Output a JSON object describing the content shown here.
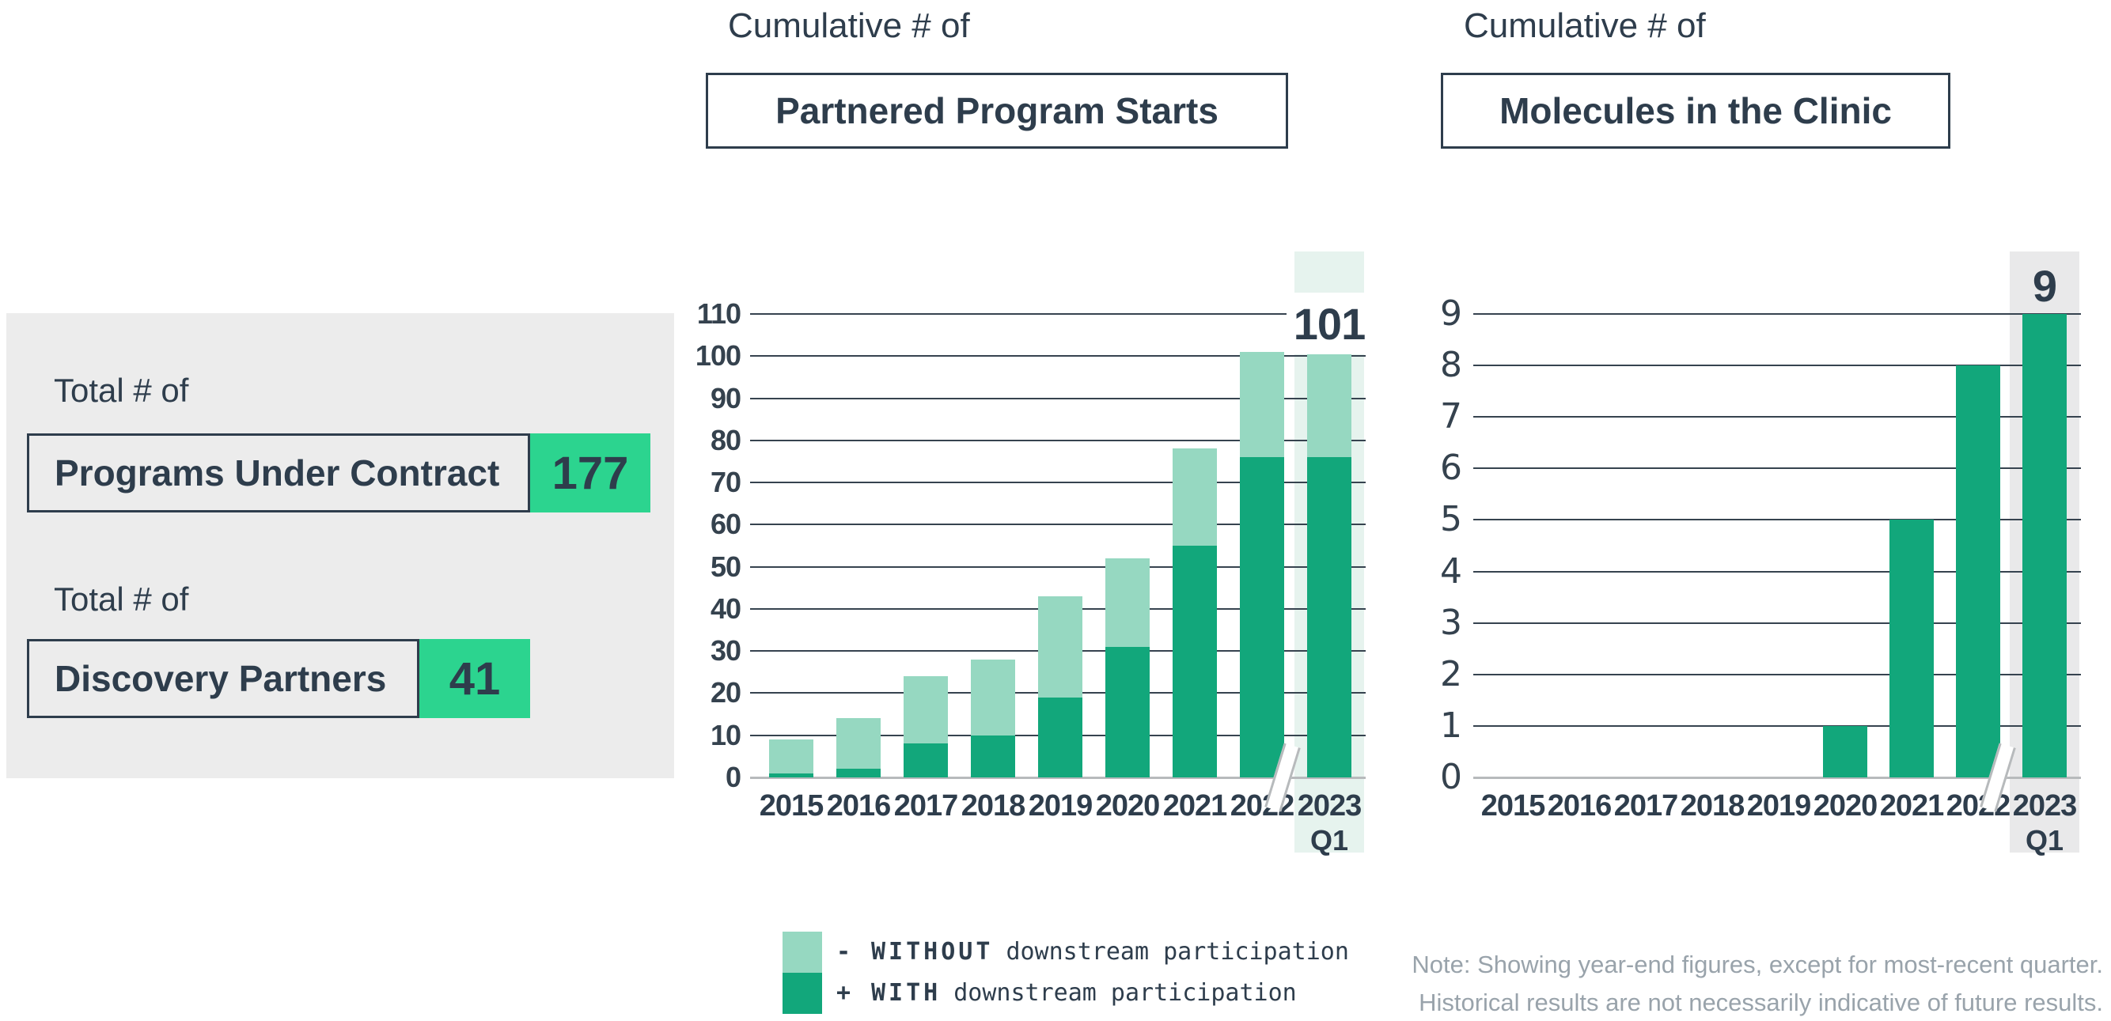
{
  "stats_panel": {
    "items": [
      {
        "prefix": "Total # of",
        "label": "Programs Under Contract",
        "value": "177"
      },
      {
        "prefix": "Total # of",
        "label": "Discovery Partners",
        "value": "41"
      }
    ]
  },
  "chart_data": [
    {
      "type": "bar",
      "stacked": true,
      "title_prefix": "Cumulative # of",
      "title": "Partnered Program Starts",
      "categories": [
        "2015",
        "2016",
        "2017",
        "2018",
        "2019",
        "2020",
        "2021",
        "2022",
        "2023"
      ],
      "last_category_sublabel": "Q1",
      "series": [
        {
          "name": "WITH downstream participation",
          "color": "#12a77b",
          "values": [
            1,
            2,
            8,
            10,
            19,
            31,
            55,
            76,
            76
          ]
        },
        {
          "name": "WITHOUT downstream participation",
          "color": "#96d8c1",
          "values": [
            8,
            12,
            16,
            18,
            24,
            21,
            23,
            25,
            25
          ]
        }
      ],
      "totals": [
        9,
        14,
        24,
        28,
        43,
        52,
        78,
        101,
        101
      ],
      "ylim": [
        0,
        110
      ],
      "ystep": 10,
      "grid": true,
      "legend_position": "bottom",
      "axis_break_before_last": true,
      "annotation": {
        "text": "101",
        "category": "2023 Q1"
      },
      "highlight_band": {
        "category": "2023 Q1",
        "color": "#e6f3ee"
      }
    },
    {
      "type": "bar",
      "stacked": false,
      "title_prefix": "Cumulative # of",
      "title": "Molecules in the Clinic",
      "categories": [
        "2015",
        "2016",
        "2017",
        "2018",
        "2019",
        "2020",
        "2021",
        "2022",
        "2023"
      ],
      "last_category_sublabel": "Q1",
      "series": [
        {
          "name": "Molecules in the Clinic",
          "color": "#12a77b",
          "values": [
            0,
            0,
            0,
            0,
            0,
            1,
            5,
            8,
            9
          ]
        }
      ],
      "ylim": [
        0,
        9
      ],
      "ystep": 1,
      "grid": true,
      "axis_break_before_last": true,
      "annotation": {
        "text": "9",
        "category": "2023 Q1"
      },
      "highlight_band": {
        "category": "2023 Q1",
        "color": "#e9e9ea"
      }
    }
  ],
  "legend": {
    "items": [
      {
        "symbol": "-",
        "keyword": "WITHOUT",
        "text": "downstream participation",
        "swatch_color": "#96d8c1"
      },
      {
        "symbol": "+",
        "keyword": "WITH",
        "text": "downstream participation",
        "swatch_color": "#12a77b"
      }
    ]
  },
  "note": {
    "lines": [
      "Note: Showing year-end figures, except for most-recent quarter.",
      "Historical results are not necessarily indicative of future results."
    ]
  },
  "colors": {
    "navy": "#2e3d4c",
    "panel_gray": "#ececec",
    "stat_green": "#2cd48f",
    "bar_dark_green": "#12a77b",
    "bar_light_green": "#96d8c1",
    "band_mint": "#e6f3ee",
    "band_gray": "#e9e9ea",
    "baseline_gray": "#b7babc",
    "gridline": "#36434f",
    "note_gray": "#99a3ab"
  }
}
